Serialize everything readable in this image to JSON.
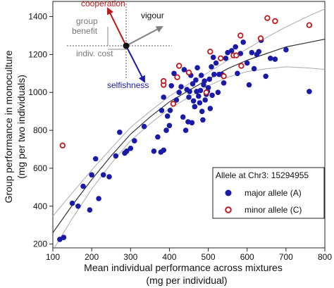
{
  "chart_data": {
    "type": "scatter",
    "xlabel_line1": "Mean individual performance across mixtures",
    "xlabel_line2": "(mg per individual)",
    "ylabel_line1": "Group performance in monoculture",
    "ylabel_line2": "(mg per two individuals)",
    "xlim": [
      100,
      800
    ],
    "ylim": [
      180,
      1480
    ],
    "x_ticks": [
      100,
      200,
      300,
      400,
      500,
      600,
      700,
      800
    ],
    "y_ticks": [
      200,
      400,
      600,
      800,
      1000,
      1200,
      1400
    ],
    "grid": false,
    "legend": {
      "title": "Allele at Chr3: 15294955",
      "placement": "right",
      "entries": [
        {
          "label": "major allele (A)",
          "color": "#1a1aa8",
          "marker": "filled-circle"
        },
        {
          "label": "minor allele (C)",
          "color": "#c0171b",
          "marker": "open-circle"
        }
      ]
    },
    "series": [
      {
        "name": "major allele (A)",
        "color": "#1a1aa8",
        "points": [
          [
            118,
            225
          ],
          [
            128,
            235
          ],
          [
            150,
            415
          ],
          [
            165,
            400
          ],
          [
            178,
            505
          ],
          [
            195,
            380
          ],
          [
            200,
            565
          ],
          [
            210,
            650
          ],
          [
            218,
            440
          ],
          [
            230,
            565
          ],
          [
            245,
            555
          ],
          [
            262,
            665
          ],
          [
            272,
            790
          ],
          [
            285,
            680
          ],
          [
            290,
            690
          ],
          [
            300,
            705
          ],
          [
            310,
            745
          ],
          [
            335,
            820
          ],
          [
            360,
            690
          ],
          [
            370,
            765
          ],
          [
            378,
            685
          ],
          [
            380,
            905
          ],
          [
            385,
            695
          ],
          [
            385,
            975
          ],
          [
            392,
            800
          ],
          [
            395,
            875
          ],
          [
            400,
            825
          ],
          [
            402,
            905
          ],
          [
            405,
            1035
          ],
          [
            412,
            1100
          ],
          [
            418,
            960
          ],
          [
            425,
            1000
          ],
          [
            430,
            1030
          ],
          [
            435,
            870
          ],
          [
            438,
            1120
          ],
          [
            442,
            800
          ],
          [
            445,
            1015
          ],
          [
            448,
            845
          ],
          [
            450,
            975
          ],
          [
            452,
            1005
          ],
          [
            455,
            1090
          ],
          [
            458,
            840
          ],
          [
            460,
            1045
          ],
          [
            462,
            955
          ],
          [
            465,
            925
          ],
          [
            468,
            1065
          ],
          [
            470,
            1005
          ],
          [
            472,
            1130
          ],
          [
            475,
            980
          ],
          [
            478,
            945
          ],
          [
            480,
            1010
          ],
          [
            482,
            1090
          ],
          [
            484,
            900
          ],
          [
            486,
            855
          ],
          [
            488,
            1040
          ],
          [
            490,
            1060
          ],
          [
            492,
            960
          ],
          [
            495,
            990
          ],
          [
            498,
            1005
          ],
          [
            500,
            1025
          ],
          [
            503,
            1070
          ],
          [
            505,
            915
          ],
          [
            508,
            1135
          ],
          [
            510,
            985
          ],
          [
            513,
            1185
          ],
          [
            515,
            1095
          ],
          [
            520,
            1155
          ],
          [
            525,
            1000
          ],
          [
            528,
            1095
          ],
          [
            535,
            1095
          ],
          [
            540,
            1050
          ],
          [
            545,
            1180
          ],
          [
            550,
            1210
          ],
          [
            560,
            1220
          ],
          [
            570,
            1240
          ],
          [
            575,
            1100
          ],
          [
            583,
            1205
          ],
          [
            590,
            1265
          ],
          [
            600,
            1155
          ],
          [
            605,
            1040
          ],
          [
            612,
            1210
          ],
          [
            618,
            1125
          ],
          [
            625,
            1200
          ],
          [
            630,
            1215
          ],
          [
            636,
            1275
          ],
          [
            648,
            1085
          ],
          [
            660,
            1180
          ],
          [
            672,
            1175
          ],
          [
            700,
            1225
          ],
          [
            760,
            1005
          ]
        ]
      },
      {
        "name": "minor allele (C)",
        "color": "#c0171b",
        "points": [
          [
            125,
            720
          ],
          [
            385,
            1040
          ],
          [
            385,
            1060
          ],
          [
            410,
            940
          ],
          [
            420,
            1080
          ],
          [
            425,
            1140
          ],
          [
            450,
            1105
          ],
          [
            495,
            1000
          ],
          [
            505,
            1215
          ],
          [
            532,
            1180
          ],
          [
            540,
            1085
          ],
          [
            565,
            1195
          ],
          [
            572,
            1195
          ],
          [
            583,
            1300
          ],
          [
            585,
            1140
          ],
          [
            635,
            1285
          ],
          [
            652,
            1392
          ],
          [
            672,
            1376
          ],
          [
            760,
            1355
          ]
        ]
      }
    ],
    "fit": {
      "x": [
        95,
        150,
        200,
        250,
        300,
        350,
        400,
        450,
        500,
        550,
        600,
        650,
        700,
        750,
        810
      ],
      "y": [
        245,
        405,
        540,
        665,
        780,
        870,
        950,
        1010,
        1070,
        1125,
        1170,
        1205,
        1240,
        1260,
        1285
      ]
    },
    "band_upper": {
      "x": [
        95,
        150,
        200,
        250,
        300,
        350,
        400,
        450,
        500,
        550,
        600,
        650,
        700,
        750,
        810
      ],
      "y": [
        335,
        470,
        590,
        705,
        815,
        900,
        980,
        1045,
        1105,
        1170,
        1230,
        1290,
        1345,
        1395,
        1450
      ]
    },
    "band_lower": {
      "x": [
        95,
        150,
        200,
        250,
        300,
        350,
        400,
        450,
        500,
        550,
        600,
        650,
        700,
        750,
        810
      ],
      "y": [
        150,
        335,
        490,
        625,
        745,
        835,
        915,
        975,
        1035,
        1080,
        1110,
        1125,
        1135,
        1130,
        1120
      ]
    }
  },
  "inset": {
    "cooperation_label": "cooperation",
    "vigour_label": "vigour",
    "group_benefit_line1": "group",
    "group_benefit_line2": "benefit",
    "indiv_cost_label": "indiv. cost",
    "selfishness_label": "selfishness",
    "colors": {
      "cooperation": "#c0171b",
      "selfishness": "#1a1aa8",
      "vigour": "#808080"
    }
  }
}
